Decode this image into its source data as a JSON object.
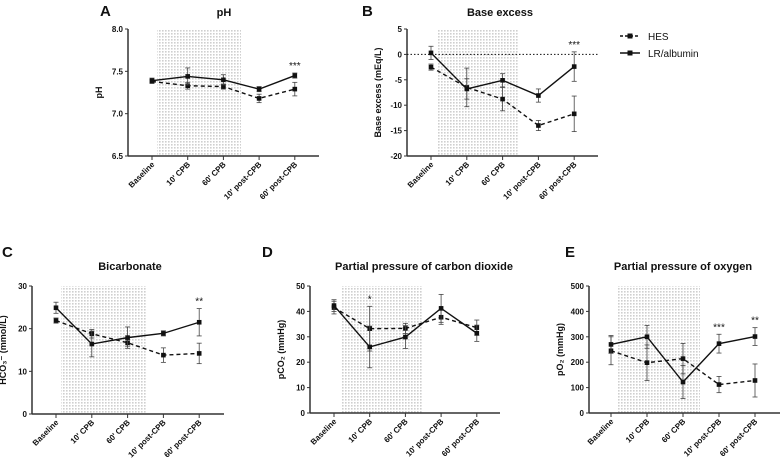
{
  "legend": {
    "hes": "HES",
    "lr": "LR/albumin"
  },
  "colors": {
    "line": "#111111",
    "shade": "#cfcfcf",
    "axis": "#333333"
  },
  "chart_data": [
    {
      "panel": "A",
      "type": "line",
      "title": "pH",
      "ylabel": "pH",
      "ylim": [
        6.5,
        8.0
      ],
      "yticks": [
        "6.5",
        "7.0",
        "7.5",
        "8.0"
      ],
      "ytick_values": [
        6.5,
        7.0,
        7.5,
        8.0
      ],
      "categories": [
        "Baseline",
        "10' CPB",
        "60' CPB",
        "10' post-CPB",
        "60' post-CPB"
      ],
      "shaded_region": [
        "10' CPB",
        "60' CPB"
      ],
      "series": [
        {
          "name": "HES",
          "style": "dashed",
          "values": [
            7.38,
            7.33,
            7.32,
            7.18,
            7.29
          ],
          "errors": [
            0.02,
            0.04,
            0.03,
            0.05,
            0.08
          ]
        },
        {
          "name": "LR/albumin",
          "style": "solid",
          "values": [
            7.39,
            7.44,
            7.4,
            7.29,
            7.45
          ],
          "errors": [
            0.03,
            0.1,
            0.06,
            0.03,
            0.03
          ]
        }
      ],
      "annotations": [
        {
          "category": "60' post-CPB",
          "text": "***"
        }
      ]
    },
    {
      "panel": "B",
      "type": "line",
      "title": "Base excess",
      "ylabel": "Base excess (mEq/L)",
      "ylim": [
        -20,
        5
      ],
      "yticks": [
        "-20",
        "-15",
        "-10",
        "-5",
        "0",
        "5"
      ],
      "ytick_values": [
        -20,
        -15,
        -10,
        -5,
        0,
        5
      ],
      "reference_line": 0,
      "categories": [
        "Baseline",
        "10' CPB",
        "60' CPB",
        "10' post-CPB",
        "60' post-CPB"
      ],
      "shaded_region": [
        "10' CPB",
        "60' CPB"
      ],
      "series": [
        {
          "name": "HES",
          "style": "dashed",
          "values": [
            -2.5,
            -6.5,
            -8.8,
            -14.0,
            -11.7
          ],
          "errors": [
            0.6,
            3.8,
            2.3,
            1.0,
            3.5
          ]
        },
        {
          "name": "LR/albumin",
          "style": "solid",
          "values": [
            0.3,
            -6.8,
            -5.1,
            -8.1,
            -2.4
          ],
          "errors": [
            1.3,
            2.0,
            1.3,
            1.3,
            2.9
          ]
        }
      ],
      "annotations": [
        {
          "category": "60' post-CPB",
          "text": "***"
        }
      ]
    },
    {
      "panel": "C",
      "type": "line",
      "title": "Bicarbonate",
      "ylabel": "HCO₃⁻ (mmol/L)",
      "ylim": [
        0,
        30
      ],
      "yticks": [
        "0",
        "10",
        "20",
        "30"
      ],
      "ytick_values": [
        0,
        10,
        20,
        30
      ],
      "categories": [
        "Baseline",
        "10' CPB",
        "60' CPB",
        "10' post-CPB",
        "60' post-CPB"
      ],
      "shaded_region": [
        "10' CPB",
        "60' CPB"
      ],
      "series": [
        {
          "name": "HES",
          "style": "dashed",
          "values": [
            21.9,
            18.8,
            16.7,
            13.8,
            14.2
          ],
          "errors": [
            0.6,
            1.0,
            0.8,
            1.7,
            2.4
          ]
        },
        {
          "name": "LR/albumin",
          "style": "solid",
          "values": [
            24.9,
            16.4,
            17.9,
            18.9,
            21.5
          ],
          "errors": [
            1.3,
            3.0,
            2.5,
            0.6,
            3.2
          ]
        }
      ],
      "annotations": [
        {
          "category": "60' post-CPB",
          "text": "**"
        }
      ]
    },
    {
      "panel": "D",
      "type": "line",
      "title": "Partial pressure of carbon dioxide",
      "ylabel": "pCO₂ (mmHg)",
      "ylim": [
        0,
        50
      ],
      "yticks": [
        "0",
        "10",
        "20",
        "30",
        "40",
        "50"
      ],
      "ytick_values": [
        0,
        10,
        20,
        30,
        40,
        50
      ],
      "categories": [
        "Baseline",
        "10' CPB",
        "60' CPB",
        "10' post-CPB",
        "60' post-CPB"
      ],
      "shaded_region": [
        "10' CPB",
        "60' CPB"
      ],
      "series": [
        {
          "name": "HES",
          "style": "dashed",
          "values": [
            41.5,
            33.2,
            33.3,
            37.7,
            33.6
          ],
          "errors": [
            2.5,
            8.8,
            2.0,
            2.8,
            3.0
          ]
        },
        {
          "name": "LR/albumin",
          "style": "solid",
          "values": [
            42.3,
            26.0,
            29.9,
            41.2,
            31.4
          ],
          "errors": [
            2.3,
            8.2,
            4.5,
            5.5,
            3.2
          ]
        }
      ],
      "annotations": [
        {
          "category": "10' CPB",
          "text": "*"
        }
      ]
    },
    {
      "panel": "E",
      "type": "line",
      "title": "Partial pressure of oxygen",
      "ylabel": "pO₂ (mmHg)",
      "ylim": [
        0,
        500
      ],
      "yticks": [
        "0",
        "100",
        "200",
        "300",
        "400",
        "500"
      ],
      "ytick_values": [
        0,
        100,
        200,
        300,
        400,
        500
      ],
      "categories": [
        "Baseline",
        "10' CPB",
        "60' CPB",
        "10' post-CPB",
        "60' post-CPB"
      ],
      "shaded_region": [
        "10' CPB",
        "60' CPB"
      ],
      "series": [
        {
          "name": "HES",
          "style": "dashed",
          "values": [
            245,
            198,
            214,
            112,
            128
          ],
          "errors": [
            55,
            70,
            60,
            32,
            65
          ]
        },
        {
          "name": "LR/albumin",
          "style": "solid",
          "values": [
            270,
            300,
            122,
            273,
            301
          ],
          "errors": [
            35,
            45,
            65,
            37,
            35
          ]
        }
      ],
      "annotations": [
        {
          "category": "10' post-CPB",
          "text": "***"
        },
        {
          "category": "60' post-CPB",
          "text": "**"
        }
      ]
    }
  ]
}
